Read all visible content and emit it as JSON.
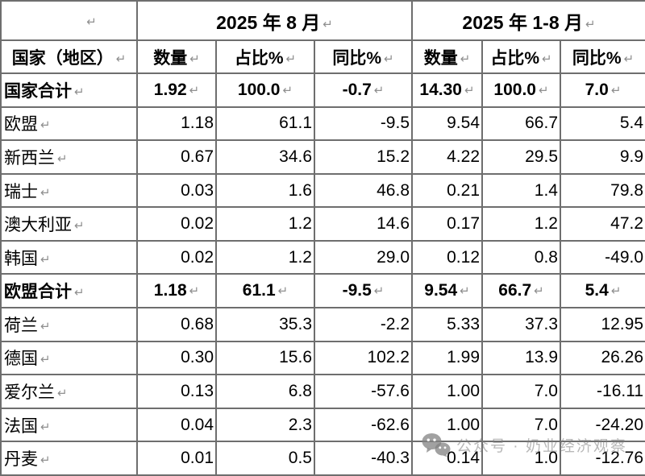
{
  "table": {
    "paragraph_mark": "↵",
    "period_headers": [
      {
        "label": "2025 年 8 月"
      },
      {
        "label": "2025 年 1-8 月"
      }
    ],
    "column_headers": [
      "国家（地区）",
      "数量",
      "占比%",
      "同比%",
      "数量",
      "占比%",
      "同比%"
    ],
    "rows": [
      {
        "name": "国家合计",
        "bold": true,
        "values": [
          "1.92",
          "100.0",
          "-0.7",
          "14.30",
          "100.0",
          "7.0"
        ]
      },
      {
        "name": "欧盟",
        "bold": false,
        "values": [
          "1.18",
          "61.1",
          "-9.5",
          "9.54",
          "66.7",
          "5.4"
        ]
      },
      {
        "name": "新西兰",
        "bold": false,
        "values": [
          "0.67",
          "34.6",
          "15.2",
          "4.22",
          "29.5",
          "9.9"
        ]
      },
      {
        "name": "瑞士",
        "bold": false,
        "values": [
          "0.03",
          "1.6",
          "46.8",
          "0.21",
          "1.4",
          "79.8"
        ]
      },
      {
        "name": "澳大利亚",
        "bold": false,
        "values": [
          "0.02",
          "1.2",
          "14.6",
          "0.17",
          "1.2",
          "47.2"
        ]
      },
      {
        "name": "韩国",
        "bold": false,
        "values": [
          "0.02",
          "1.2",
          "29.0",
          "0.12",
          "0.8",
          "-49.0"
        ]
      },
      {
        "name": "欧盟合计",
        "bold": true,
        "values": [
          "1.18",
          "61.1",
          "-9.5",
          "9.54",
          "66.7",
          "5.4"
        ]
      },
      {
        "name": "荷兰",
        "bold": false,
        "values": [
          "0.68",
          "35.3",
          "-2.2",
          "5.33",
          "37.3",
          "12.95"
        ]
      },
      {
        "name": "德国",
        "bold": false,
        "values": [
          "0.30",
          "15.6",
          "102.2",
          "1.99",
          "13.9",
          "26.26"
        ]
      },
      {
        "name": "爱尔兰",
        "bold": false,
        "values": [
          "0.13",
          "6.8",
          "-57.6",
          "1.00",
          "7.0",
          "-16.11"
        ]
      },
      {
        "name": "法国",
        "bold": false,
        "values": [
          "0.04",
          "2.3",
          "-62.6",
          "1.00",
          "7.0",
          "-24.20"
        ]
      },
      {
        "name": "丹麦",
        "bold": false,
        "values": [
          "0.01",
          "0.5",
          "-40.3",
          "0.14",
          "1.0",
          "-12.76"
        ]
      }
    ]
  },
  "watermark": {
    "icon": "wechat-icon",
    "text": "公众号 · 奶业经济观察"
  },
  "colors": {
    "border": "#6e6e6e",
    "paragraph_mark": "#8f8f8f",
    "text": "#000000",
    "watermark": "#7d7d7d"
  }
}
